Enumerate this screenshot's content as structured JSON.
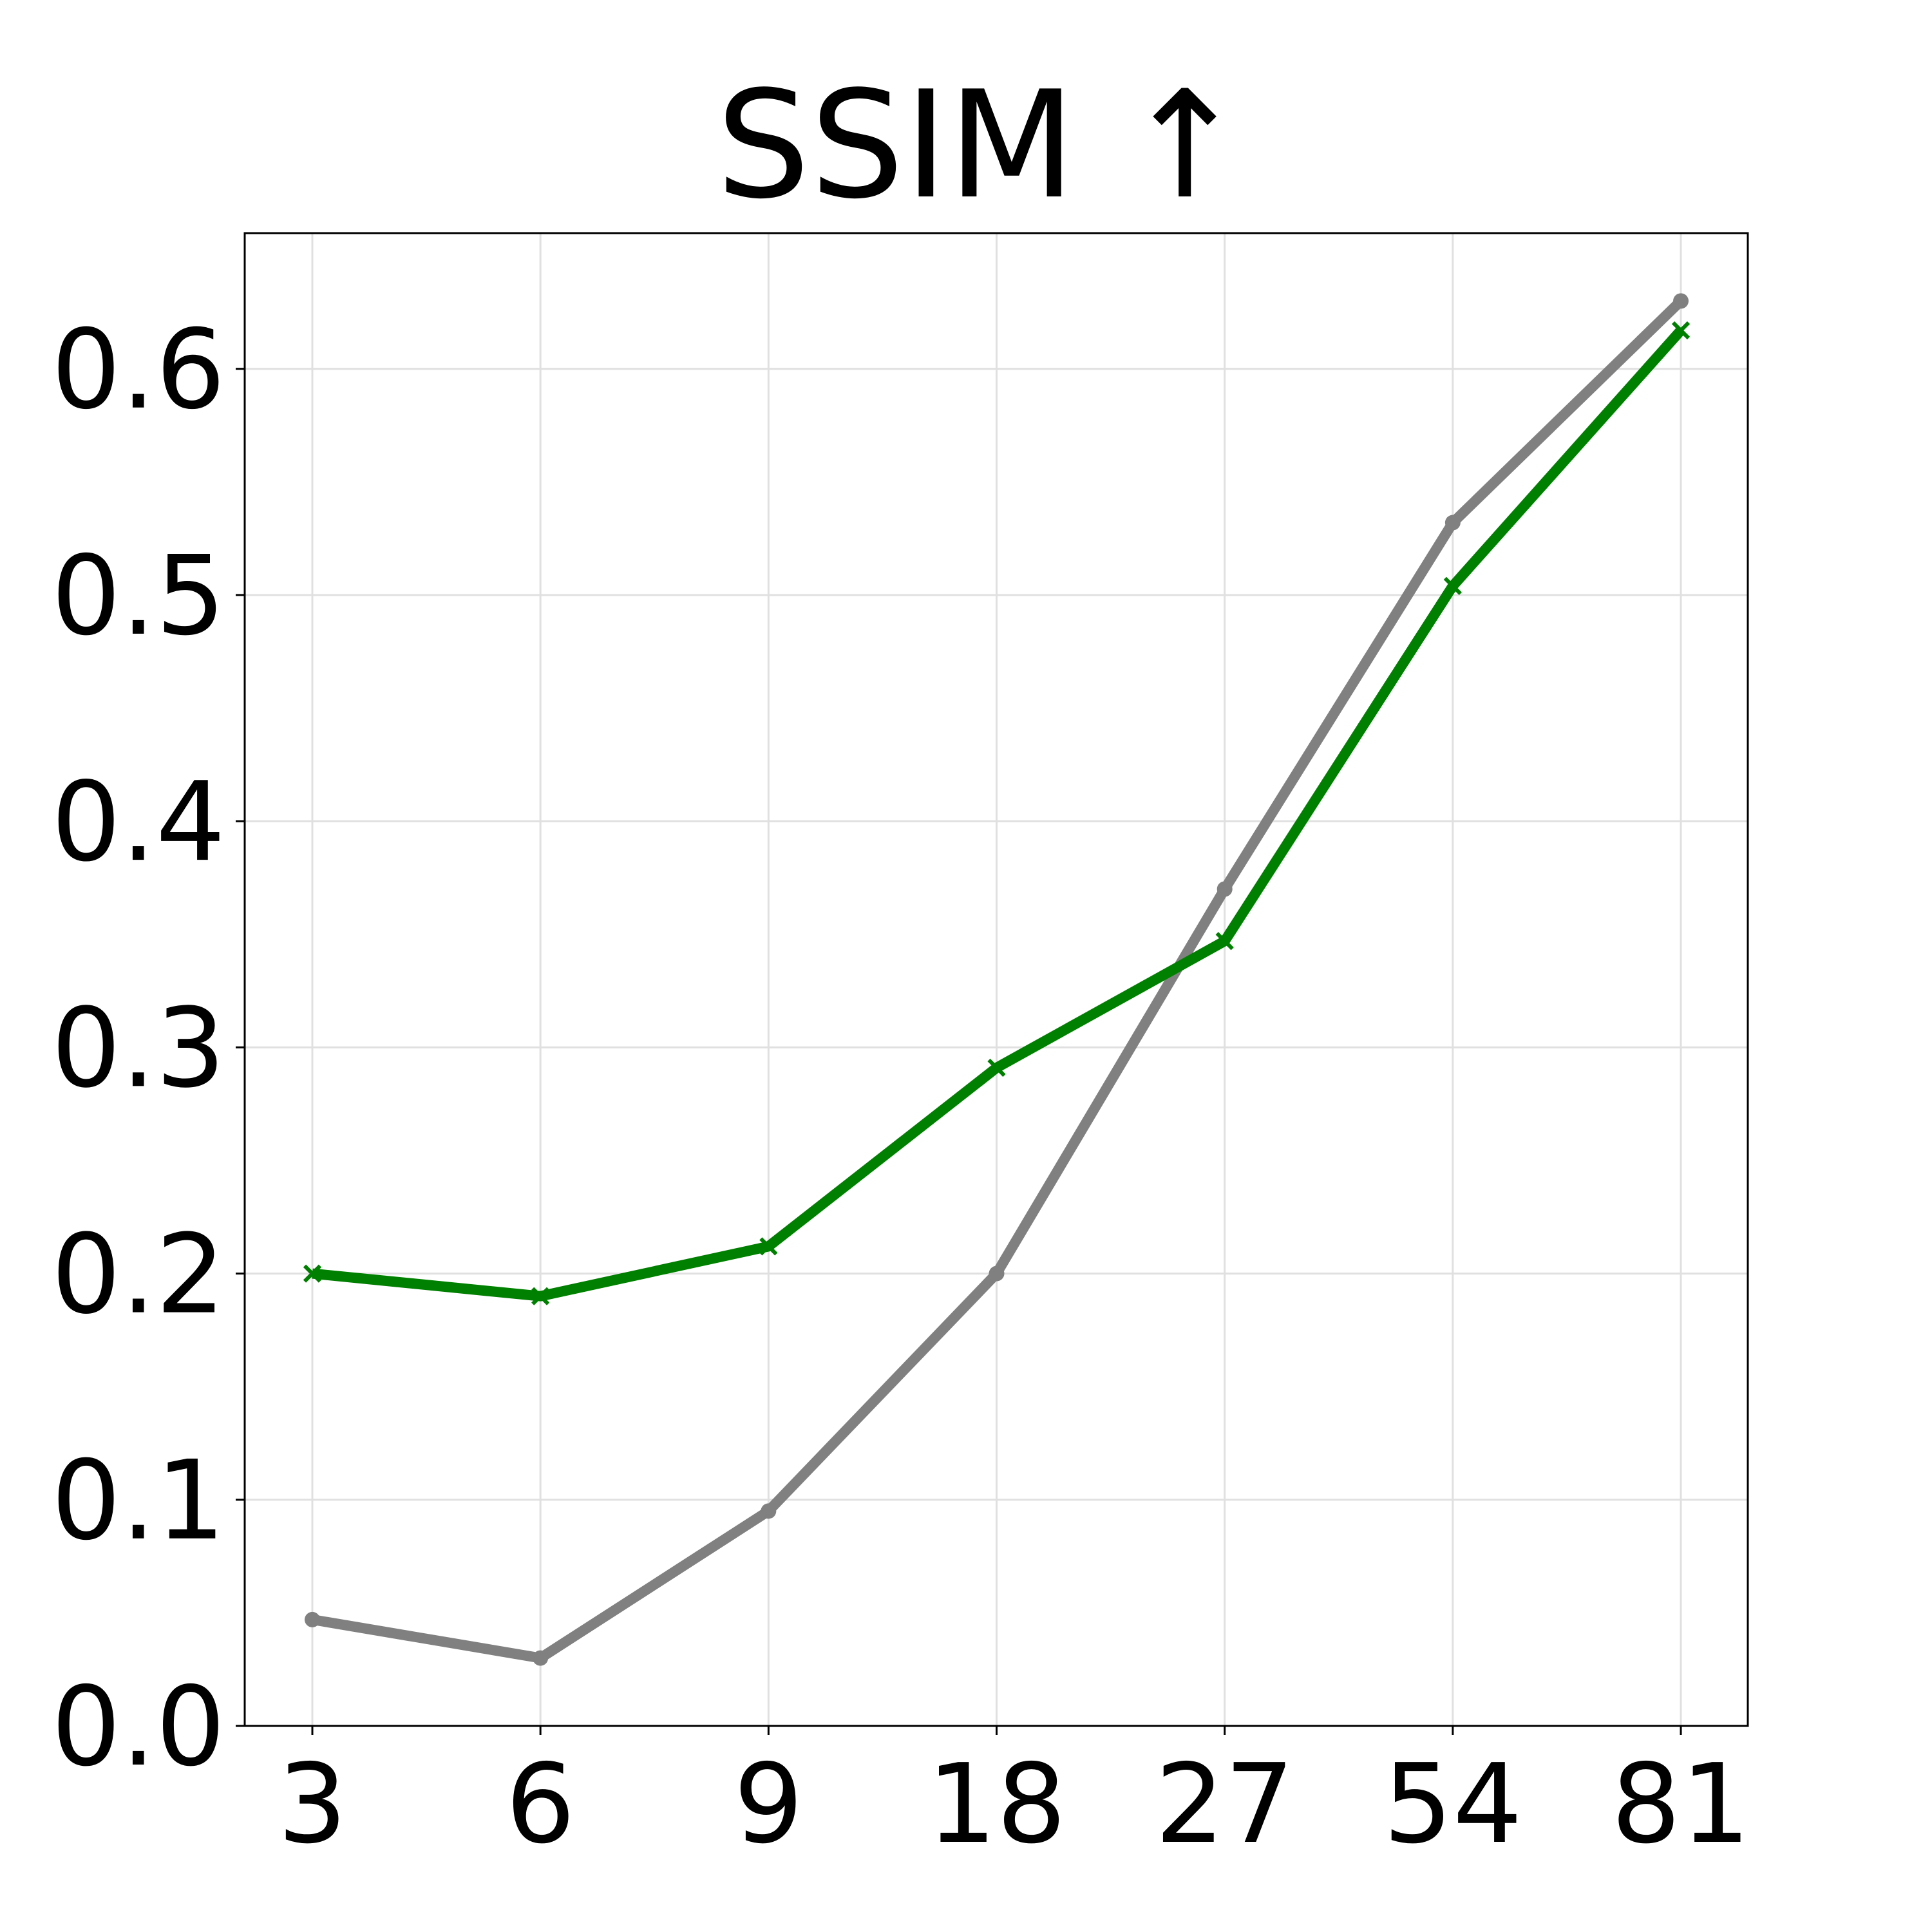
{
  "chart_data": {
    "type": "line",
    "title": "SSIM ↑",
    "xlabel": "",
    "ylabel": "",
    "categories": [
      "3",
      "6",
      "9",
      "18",
      "27",
      "54",
      "81"
    ],
    "yticks": [
      "0.0",
      "0.1",
      "0.2",
      "0.3",
      "0.4",
      "0.5",
      "0.6"
    ],
    "ylim": [
      0.0,
      0.66
    ],
    "grid": true,
    "series": [
      {
        "color": "#808080",
        "marker": "circle",
        "values": [
          0.047,
          0.03,
          0.095,
          0.2,
          0.37,
          0.532,
          0.63
        ]
      },
      {
        "color": "#008000",
        "marker": "x",
        "values": [
          0.2,
          0.19,
          0.212,
          0.291,
          0.347,
          0.504,
          0.617
        ]
      }
    ]
  }
}
